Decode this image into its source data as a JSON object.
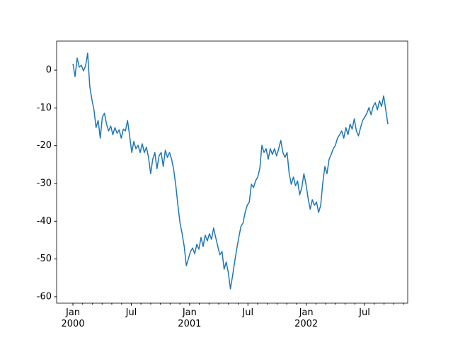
{
  "chart_data": {
    "type": "line",
    "x": [
      2000,
      2000.018,
      2000.036,
      2000.054,
      2000.072,
      2000.09,
      2000.108,
      2000.126,
      2000.144,
      2000.162,
      2000.18,
      2000.198,
      2000.216,
      2000.234,
      2000.252,
      2000.27,
      2000.288,
      2000.306,
      2000.324,
      2000.342,
      2000.36,
      2000.378,
      2000.396,
      2000.414,
      2000.432,
      2000.45,
      2000.468,
      2000.486,
      2000.504,
      2000.522,
      2000.54,
      2000.558,
      2000.576,
      2000.594,
      2000.612,
      2000.63,
      2000.648,
      2000.666,
      2000.684,
      2000.702,
      2000.72,
      2000.738,
      2000.756,
      2000.774,
      2000.792,
      2000.81,
      2000.828,
      2000.846,
      2000.864,
      2000.882,
      2000.9,
      2000.918,
      2000.936,
      2000.954,
      2000.972,
      2000.99,
      2001.008,
      2001.026,
      2001.044,
      2001.062,
      2001.08,
      2001.098,
      2001.116,
      2001.134,
      2001.152,
      2001.17,
      2001.188,
      2001.206,
      2001.224,
      2001.242,
      2001.26,
      2001.278,
      2001.296,
      2001.314,
      2001.332,
      2001.35,
      2001.368,
      2001.386,
      2001.404,
      2001.422,
      2001.44,
      2001.458,
      2001.476,
      2001.494,
      2001.512,
      2001.53,
      2001.548,
      2001.566,
      2001.584,
      2001.602,
      2001.62,
      2001.638,
      2001.656,
      2001.674,
      2001.692,
      2001.71,
      2001.728,
      2001.746,
      2001.764,
      2001.782,
      2001.8,
      2001.818,
      2001.836,
      2001.854,
      2001.872,
      2001.89,
      2001.908,
      2001.926,
      2001.944,
      2001.962,
      2001.98,
      2001.998,
      2002.016,
      2002.034,
      2002.052,
      2002.07,
      2002.088,
      2002.106,
      2002.124,
      2002.142,
      2002.16,
      2002.178,
      2002.196,
      2002.214,
      2002.232,
      2002.25,
      2002.268,
      2002.286,
      2002.304,
      2002.322,
      2002.34,
      2002.358,
      2002.376,
      2002.394,
      2002.412,
      2002.43,
      2002.448,
      2002.466,
      2002.484,
      2002.502,
      2002.52,
      2002.538,
      2002.556,
      2002.574,
      2002.592,
      2002.61,
      2002.628,
      2002.646,
      2002.664,
      2002.682,
      2002.7
    ],
    "series": [
      {
        "color": "#1f77b4",
        "values": [
          1.7,
          -1.7,
          3.2,
          0.8,
          1.3,
          -0.2,
          1.1,
          4.5,
          -4.3,
          -7.7,
          -10.5,
          -15.2,
          -13.3,
          -18,
          -12.4,
          -11.4,
          -14.3,
          -16.1,
          -14.8,
          -17.1,
          -15.2,
          -16.7,
          -15.8,
          -18,
          -15.6,
          -16.1,
          -13.3,
          -17.4,
          -21.8,
          -18.9,
          -20.8,
          -19.9,
          -21.8,
          -19.5,
          -21.8,
          -20.4,
          -23.1,
          -27.4,
          -23.6,
          -21.8,
          -26.1,
          -22.7,
          -21.8,
          -25.5,
          -21.2,
          -23.1,
          -21.8,
          -23.6,
          -26.4,
          -30.6,
          -35.8,
          -40.5,
          -43.3,
          -46.7,
          -51.8,
          -49.9,
          -48,
          -47.1,
          -48.6,
          -46.1,
          -47.4,
          -44.3,
          -46.7,
          -43.7,
          -45.2,
          -43.3,
          -44.8,
          -41.8,
          -44.3,
          -46.7,
          -48.9,
          -48,
          -52.7,
          -50.8,
          -53.6,
          -57.9,
          -54.6,
          -50.8,
          -47.4,
          -44.3,
          -41.4,
          -40.5,
          -37.7,
          -35.8,
          -34.9,
          -30.2,
          -31.1,
          -29.3,
          -28.3,
          -26.1,
          -19.9,
          -21.8,
          -20.8,
          -23.6,
          -20.8,
          -22.3,
          -20.8,
          -22.7,
          -20.8,
          -18.6,
          -21.8,
          -23.1,
          -21.8,
          -27.4,
          -30.2,
          -28.3,
          -30.6,
          -29.3,
          -33,
          -31.1,
          -27.4,
          -30.2,
          -33.9,
          -36.8,
          -34.3,
          -35.8,
          -34.9,
          -37.7,
          -35.8,
          -29.8,
          -25.5,
          -27.4,
          -23.6,
          -22.3,
          -20.8,
          -19.9,
          -18,
          -17.1,
          -16.1,
          -18,
          -15.2,
          -17.1,
          -14.3,
          -15.6,
          -12.9,
          -16.1,
          -17.4,
          -15.2,
          -13.3,
          -12.4,
          -11.4,
          -9.9,
          -11.8,
          -9.6,
          -8.6,
          -10.5,
          -8.1,
          -9.6,
          -6.8,
          -10.5,
          -14.3
        ]
      }
    ],
    "xlim": [
      1999.86,
      2002.87
    ],
    "xticks": [
      {
        "value": 2000,
        "label": "Jan\n2000"
      },
      {
        "value": 2000.5,
        "label": "Jul"
      },
      {
        "value": 2001,
        "label": "Jan\n2001"
      },
      {
        "value": 2001.5,
        "label": "Jul"
      },
      {
        "value": 2002,
        "label": "Jan\n2002"
      },
      {
        "value": 2002.5,
        "label": "Jul"
      }
    ],
    "xminorticks": [
      2000.083,
      2000.167,
      2000.25,
      2000.333,
      2000.417,
      2000.583,
      2000.667,
      2000.75,
      2000.833,
      2000.917,
      2001.083,
      2001.167,
      2001.25,
      2001.333,
      2001.417,
      2001.583,
      2001.667,
      2001.75,
      2001.833,
      2001.917,
      2002.083,
      2002.167,
      2002.25,
      2002.333,
      2002.417,
      2002.583,
      2002.667,
      2002.75,
      2002.833
    ],
    "ylim": [
      -61.7,
      7.7
    ],
    "yticks": [
      0,
      -10,
      -20,
      -30,
      -40,
      -50,
      -60
    ],
    "grid": false
  }
}
